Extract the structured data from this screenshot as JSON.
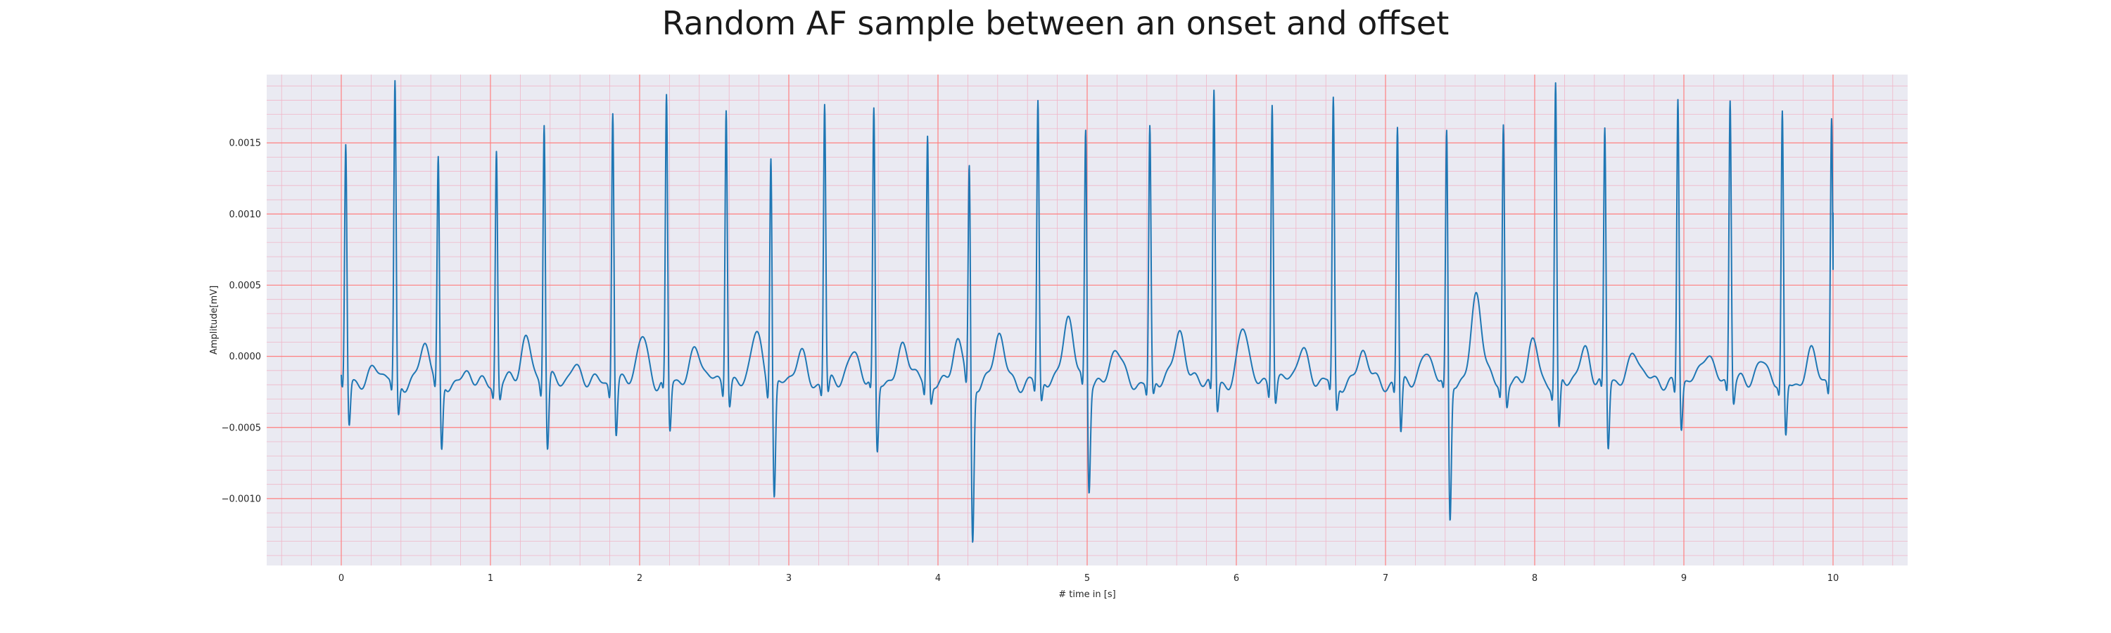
{
  "chart_data": {
    "type": "line",
    "title": "Random AF sample between an onset and offset",
    "xlabel": "# time in [s]",
    "ylabel": "Amplitude[mV]",
    "xlim": [
      -0.5,
      10.5
    ],
    "ylim": [
      -0.00147,
      0.00198
    ],
    "xticks": [
      0,
      1,
      2,
      3,
      4,
      5,
      6,
      7,
      8,
      9,
      10
    ],
    "xtick_labels": [
      "0",
      "1",
      "2",
      "3",
      "4",
      "5",
      "6",
      "7",
      "8",
      "9",
      "10"
    ],
    "yticks": [
      -0.001,
      -0.0005,
      0.0,
      0.0005,
      0.001,
      0.0015
    ],
    "ytick_labels": [
      "−0.0010",
      "−0.0005",
      "0.0000",
      "0.0005",
      "0.0010",
      "0.0015"
    ],
    "grid": true,
    "colors": {
      "background": "#eaeaf2",
      "major_grid": "#ff8080",
      "minor_grid": "#f0b6c8",
      "line": "#1f77b4"
    },
    "series": [
      {
        "beats": [
          {
            "t": 0.03,
            "r": 0.00135,
            "s": -0.00052,
            "t_wave": 8e-05
          },
          {
            "t": 0.36,
            "r": 0.0018,
            "s": -0.00045,
            "t_wave": 0.00022
          },
          {
            "t": 0.65,
            "r": 0.00126,
            "s": -0.0007,
            "t_wave": 0.0
          },
          {
            "t": 1.04,
            "r": 0.00135,
            "s": -0.0003,
            "t_wave": 0.00028
          },
          {
            "t": 1.36,
            "r": 0.00157,
            "s": -0.00069,
            "t_wave": 8e-05
          },
          {
            "t": 1.82,
            "r": 0.00167,
            "s": -0.00055,
            "t_wave": 0.00028
          },
          {
            "t": 2.18,
            "r": 0.0017,
            "s": -0.00056,
            "t_wave": 0.00023
          },
          {
            "t": 2.58,
            "r": 0.00168,
            "s": -0.00035,
            "t_wave": 0.00029
          },
          {
            "t": 2.88,
            "r": 0.00137,
            "s": -0.001,
            "t_wave": 0.00015
          },
          {
            "t": 3.24,
            "r": 0.00167,
            "s": -0.0003,
            "t_wave": 0.0002
          },
          {
            "t": 3.57,
            "r": 0.00159,
            "s": -0.00072,
            "t_wave": 0.00025
          },
          {
            "t": 3.93,
            "r": 0.00145,
            "s": -0.00033,
            "t_wave": 0.00023
          },
          {
            "t": 4.21,
            "r": 0.00125,
            "s": -0.00132,
            "t_wave": 0.00029
          },
          {
            "t": 4.67,
            "r": 0.00167,
            "s": -0.00035,
            "t_wave": 0.00044
          },
          {
            "t": 4.99,
            "r": 0.0015,
            "s": -0.00094,
            "t_wave": 0.0002
          },
          {
            "t": 5.42,
            "r": 0.0015,
            "s": -0.0003,
            "t_wave": 0.00035
          },
          {
            "t": 5.85,
            "r": 0.00176,
            "s": -0.0004,
            "t_wave": 0.00033
          },
          {
            "t": 6.24,
            "r": 0.00172,
            "s": -0.00033,
            "t_wave": 0.00022
          },
          {
            "t": 6.65,
            "r": 0.00168,
            "s": -0.0004,
            "t_wave": 0.00017
          },
          {
            "t": 7.08,
            "r": 0.00151,
            "s": -0.00058,
            "t_wave": 0.0002
          },
          {
            "t": 7.41,
            "r": 0.00146,
            "s": -0.0012,
            "t_wave": 0.0006
          },
          {
            "t": 7.79,
            "r": 0.00154,
            "s": -0.00035,
            "t_wave": 0.00022
          },
          {
            "t": 8.14,
            "r": 0.00182,
            "s": -0.00057,
            "t_wave": 0.0002
          },
          {
            "t": 8.47,
            "r": 0.00148,
            "s": -0.00068,
            "t_wave": 0.0002
          },
          {
            "t": 8.96,
            "r": 0.00174,
            "s": -0.00052,
            "t_wave": 0.0002
          },
          {
            "t": 9.31,
            "r": 0.0017,
            "s": -0.00033,
            "t_wave": 0.00012
          },
          {
            "t": 9.66,
            "r": 0.0016,
            "s": -0.0006,
            "t_wave": 0.00015
          },
          {
            "t": 9.99,
            "r": 0.00157,
            "s": -0.0001,
            "t_wave": 0.0
          }
        ],
        "start": {
          "t": 0.0,
          "v": -0.00013
        },
        "end": {
          "t": 10.0,
          "v": 0.00101
        },
        "baseline": -0.00018
      }
    ]
  }
}
